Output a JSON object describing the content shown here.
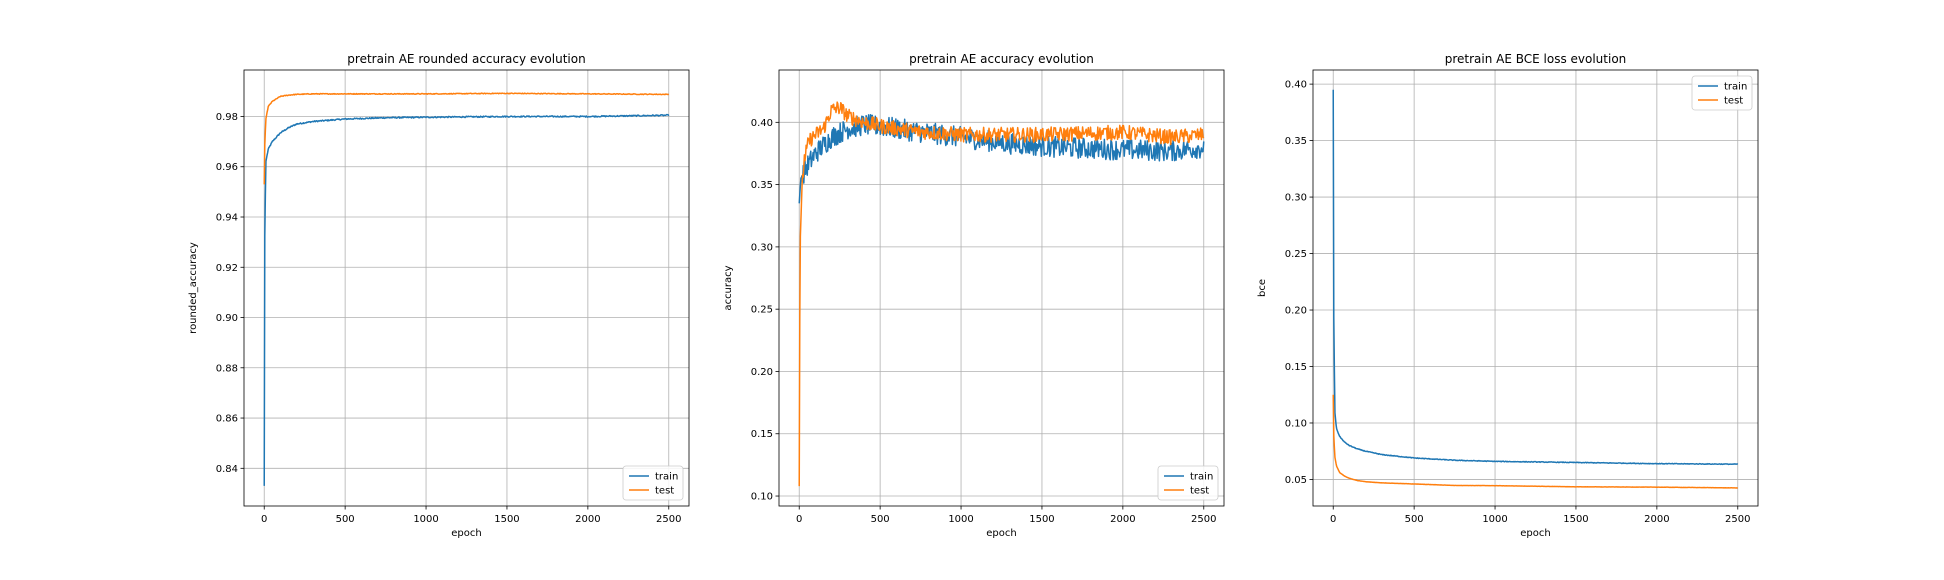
{
  "colors": {
    "train": "#1f77b4",
    "test": "#ff7f0e",
    "grid": "#b0b0b0"
  },
  "chart_data": [
    {
      "type": "line",
      "title": "pretrain AE rounded accuracy evolution",
      "xlabel": "epoch",
      "ylabel": "rounded_accuracy",
      "xlim": [
        -125,
        2625
      ],
      "ylim": [
        0.825,
        0.9985
      ],
      "xticks": [
        "0",
        "500",
        "1000",
        "1500",
        "2000",
        "2500"
      ],
      "yticks": [
        "0.84",
        "0.86",
        "0.88",
        "0.90",
        "0.92",
        "0.94",
        "0.96",
        "0.98"
      ],
      "grid": true,
      "legend_position": "lower-right",
      "series": [
        {
          "name": "train",
          "x": [
            0,
            3,
            10,
            25,
            50,
            100,
            150,
            200,
            300,
            500,
            750,
            1000,
            1500,
            2000,
            2500
          ],
          "y": [
            0.833,
            0.93,
            0.962,
            0.967,
            0.97,
            0.9735,
            0.9755,
            0.977,
            0.978,
            0.979,
            0.9795,
            0.9797,
            0.98,
            0.98,
            0.9805
          ]
        },
        {
          "name": "test",
          "x": [
            0,
            3,
            10,
            25,
            50,
            100,
            150,
            200,
            300,
            500,
            750,
            1000,
            1500,
            2000,
            2500
          ],
          "y": [
            0.953,
            0.968,
            0.979,
            0.984,
            0.986,
            0.988,
            0.9885,
            0.9888,
            0.989,
            0.989,
            0.989,
            0.989,
            0.9892,
            0.989,
            0.9888
          ]
        }
      ]
    },
    {
      "type": "line",
      "title": "pretrain AE accuracy evolution",
      "xlabel": "epoch",
      "ylabel": "accuracy",
      "xlim": [
        -125,
        2625
      ],
      "ylim": [
        0.092,
        0.442
      ],
      "xticks": [
        "0",
        "500",
        "1000",
        "1500",
        "2000",
        "2500"
      ],
      "yticks": [
        "0.10",
        "0.15",
        "0.20",
        "0.25",
        "0.30",
        "0.35",
        "0.40"
      ],
      "grid": true,
      "legend_position": "lower-right",
      "series": [
        {
          "name": "train",
          "x": [
            0,
            10,
            50,
            100,
            200,
            300,
            400,
            500,
            700,
            1000,
            1300,
            1600,
            2000,
            2300,
            2500
          ],
          "y": [
            0.335,
            0.355,
            0.365,
            0.375,
            0.388,
            0.395,
            0.398,
            0.397,
            0.393,
            0.388,
            0.383,
            0.38,
            0.378,
            0.377,
            0.38
          ]
        },
        {
          "name": "test",
          "x": [
            0,
            5,
            15,
            30,
            60,
            100,
            150,
            200,
            250,
            300,
            400,
            500,
            700,
            1000,
            1500,
            2000,
            2300,
            2500
          ],
          "y": [
            0.108,
            0.3,
            0.34,
            0.37,
            0.385,
            0.39,
            0.395,
            0.41,
            0.412,
            0.405,
            0.4,
            0.397,
            0.393,
            0.39,
            0.39,
            0.392,
            0.388,
            0.39
          ]
        }
      ]
    },
    {
      "type": "line",
      "title": "pretrain AE BCE loss evolution",
      "xlabel": "epoch",
      "ylabel": "bce",
      "xlim": [
        -125,
        2625
      ],
      "ylim": [
        0.0265,
        0.4125
      ],
      "xticks": [
        "0",
        "500",
        "1000",
        "1500",
        "2000",
        "2500"
      ],
      "yticks": [
        "0.05",
        "0.10",
        "0.15",
        "0.20",
        "0.25",
        "0.30",
        "0.35",
        "0.40"
      ],
      "grid": true,
      "legend_position": "top-right",
      "series": [
        {
          "name": "train",
          "x": [
            0,
            3,
            10,
            20,
            40,
            70,
            100,
            150,
            200,
            300,
            500,
            750,
            1000,
            1500,
            2000,
            2500
          ],
          "y": [
            0.395,
            0.2,
            0.11,
            0.095,
            0.088,
            0.083,
            0.08,
            0.077,
            0.075,
            0.072,
            0.069,
            0.067,
            0.066,
            0.065,
            0.064,
            0.0635
          ]
        },
        {
          "name": "test",
          "x": [
            0,
            3,
            10,
            20,
            40,
            70,
            100,
            150,
            200,
            300,
            500,
            750,
            1000,
            1500,
            2000,
            2500
          ],
          "y": [
            0.125,
            0.09,
            0.07,
            0.062,
            0.056,
            0.053,
            0.051,
            0.049,
            0.048,
            0.047,
            0.046,
            0.0447,
            0.0445,
            0.0435,
            0.0432,
            0.0425
          ]
        }
      ]
    }
  ]
}
